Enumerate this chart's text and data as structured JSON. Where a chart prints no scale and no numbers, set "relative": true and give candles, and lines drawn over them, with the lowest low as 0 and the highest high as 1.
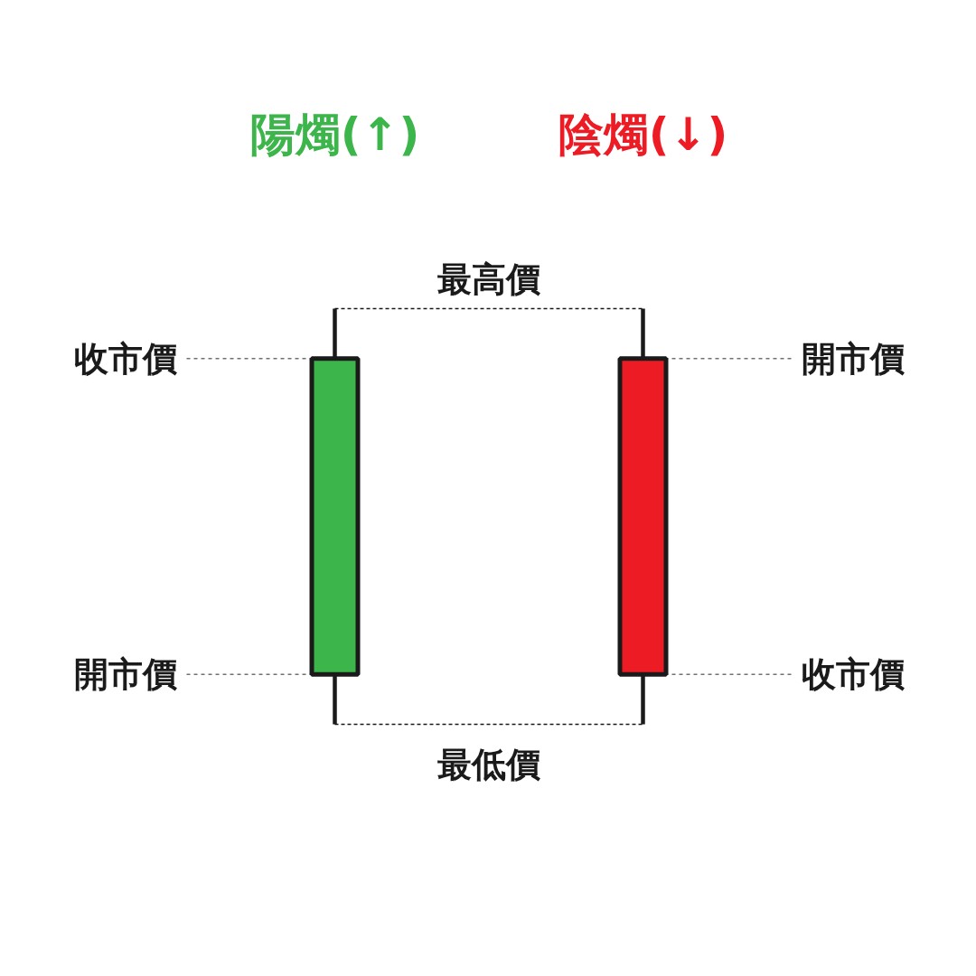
{
  "chart_data": {
    "type": "candlestick",
    "relative": true,
    "tick_labels": "x",
    "categories": [
      "陽燭(↑)",
      "陰燭(↓)"
    ],
    "ohlc": [
      [
        0.12,
        1,
        0,
        0.88
      ],
      [
        0.88,
        1,
        0,
        0.12
      ]
    ],
    "colors": [
      "#3cb54a",
      "#ed1c24"
    ],
    "annotations": [
      {
        "text": "收市價",
        "x": "陽燭(↑)",
        "y": 0.88
      },
      {
        "text": "開市價",
        "x": "陽燭(↑)",
        "y": 0.12
      },
      "最高價",
      "最低價",
      {
        "text": "開市價",
        "x": "陰燭(↓)",
        "y": 0.88
      },
      {
        "text": "收市價",
        "x": "陰燭(↓)",
        "y": 0.12
      }
    ]
  }
}
